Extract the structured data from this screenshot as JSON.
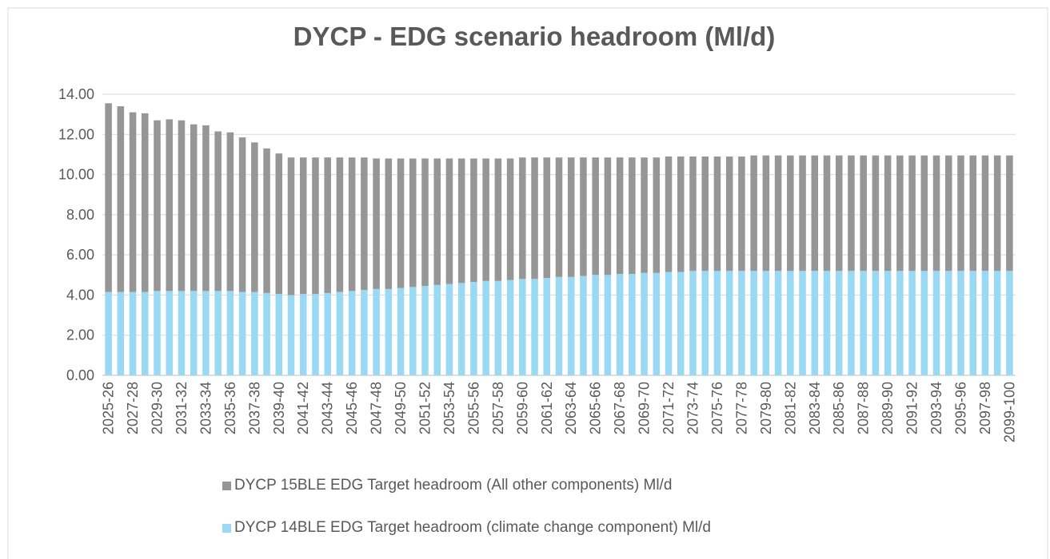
{
  "chart_data": {
    "type": "stacked_bar",
    "title": "DYCP - EDG scenario headroom (Ml/d)",
    "categories": [
      "2025-26",
      null,
      "2027-28",
      null,
      "2029-30",
      null,
      "2031-32",
      null,
      "2033-34",
      null,
      "2035-36",
      null,
      "2037-38",
      null,
      "2039-40",
      null,
      "2041-42",
      null,
      "2043-44",
      null,
      "2045-46",
      null,
      "2047-48",
      null,
      "2049-50",
      null,
      "2051-52",
      null,
      "2053-54",
      null,
      "2055-56",
      null,
      "2057-58",
      null,
      "2059-60",
      null,
      "2061-62",
      null,
      "2063-64",
      null,
      "2065-66",
      null,
      "2067-68",
      null,
      "2069-70",
      null,
      "2071-72",
      null,
      "2073-74",
      null,
      "2075-76",
      null,
      "2077-78",
      null,
      "2079-80",
      null,
      "2081-82",
      null,
      "2083-84",
      null,
      "2085-86",
      null,
      "2087-88",
      null,
      "2089-90",
      null,
      "2091-92",
      null,
      "2093-94",
      null,
      "2095-96",
      null,
      "2097-98",
      null,
      "2099-100"
    ],
    "series": [
      {
        "name": "DYCP 15BLE EDG Target headroom (All other components) Ml/d",
        "color": "#969696",
        "values": [
          9.4,
          9.25,
          8.95,
          8.9,
          8.5,
          8.55,
          8.5,
          8.3,
          8.25,
          7.95,
          7.9,
          7.7,
          7.45,
          7.2,
          7.0,
          6.85,
          6.8,
          6.8,
          6.75,
          6.7,
          6.65,
          6.6,
          6.5,
          6.5,
          6.45,
          6.4,
          6.35,
          6.3,
          6.25,
          6.2,
          6.15,
          6.1,
          6.1,
          6.05,
          6.05,
          6.05,
          6.0,
          5.95,
          5.95,
          5.9,
          5.85,
          5.85,
          5.8,
          5.8,
          5.75,
          5.75,
          5.75,
          5.75,
          5.7,
          5.7,
          5.7,
          5.7,
          5.7,
          5.75,
          5.75,
          5.75,
          5.75,
          5.75,
          5.75,
          5.75,
          5.75,
          5.75,
          5.75,
          5.75,
          5.75,
          5.75,
          5.75,
          5.75,
          5.75,
          5.75,
          5.75,
          5.75,
          5.75,
          5.75,
          5.75
        ]
      },
      {
        "name": "DYCP 14BLE EDG Target headroom (climate change component) Ml/d",
        "color": "#99d9f4",
        "values": [
          4.15,
          4.15,
          4.15,
          4.15,
          4.2,
          4.2,
          4.2,
          4.2,
          4.2,
          4.2,
          4.2,
          4.15,
          4.15,
          4.1,
          4.05,
          4.0,
          4.05,
          4.05,
          4.1,
          4.15,
          4.2,
          4.25,
          4.3,
          4.3,
          4.35,
          4.4,
          4.45,
          4.5,
          4.55,
          4.6,
          4.65,
          4.7,
          4.7,
          4.75,
          4.8,
          4.8,
          4.85,
          4.9,
          4.9,
          4.95,
          5.0,
          5.0,
          5.05,
          5.05,
          5.1,
          5.1,
          5.15,
          5.15,
          5.2,
          5.2,
          5.2,
          5.2,
          5.2,
          5.2,
          5.2,
          5.2,
          5.2,
          5.2,
          5.2,
          5.2,
          5.2,
          5.2,
          5.2,
          5.2,
          5.2,
          5.2,
          5.2,
          5.2,
          5.2,
          5.2,
          5.2,
          5.2,
          5.2,
          5.2,
          5.2
        ]
      }
    ],
    "stack_order": [
      1,
      0
    ],
    "ylim": [
      0,
      14
    ],
    "yticks": [
      {
        "value": 0,
        "label": "0.00"
      },
      {
        "value": 2,
        "label": "2.00"
      },
      {
        "value": 4,
        "label": "4.00"
      },
      {
        "value": 6,
        "label": "6.00"
      },
      {
        "value": 8,
        "label": "8.00"
      },
      {
        "value": 10,
        "label": "10.00"
      },
      {
        "value": 12,
        "label": "12.00"
      },
      {
        "value": 14,
        "label": "14.00"
      }
    ],
    "grid": true,
    "legend": "bottom"
  }
}
